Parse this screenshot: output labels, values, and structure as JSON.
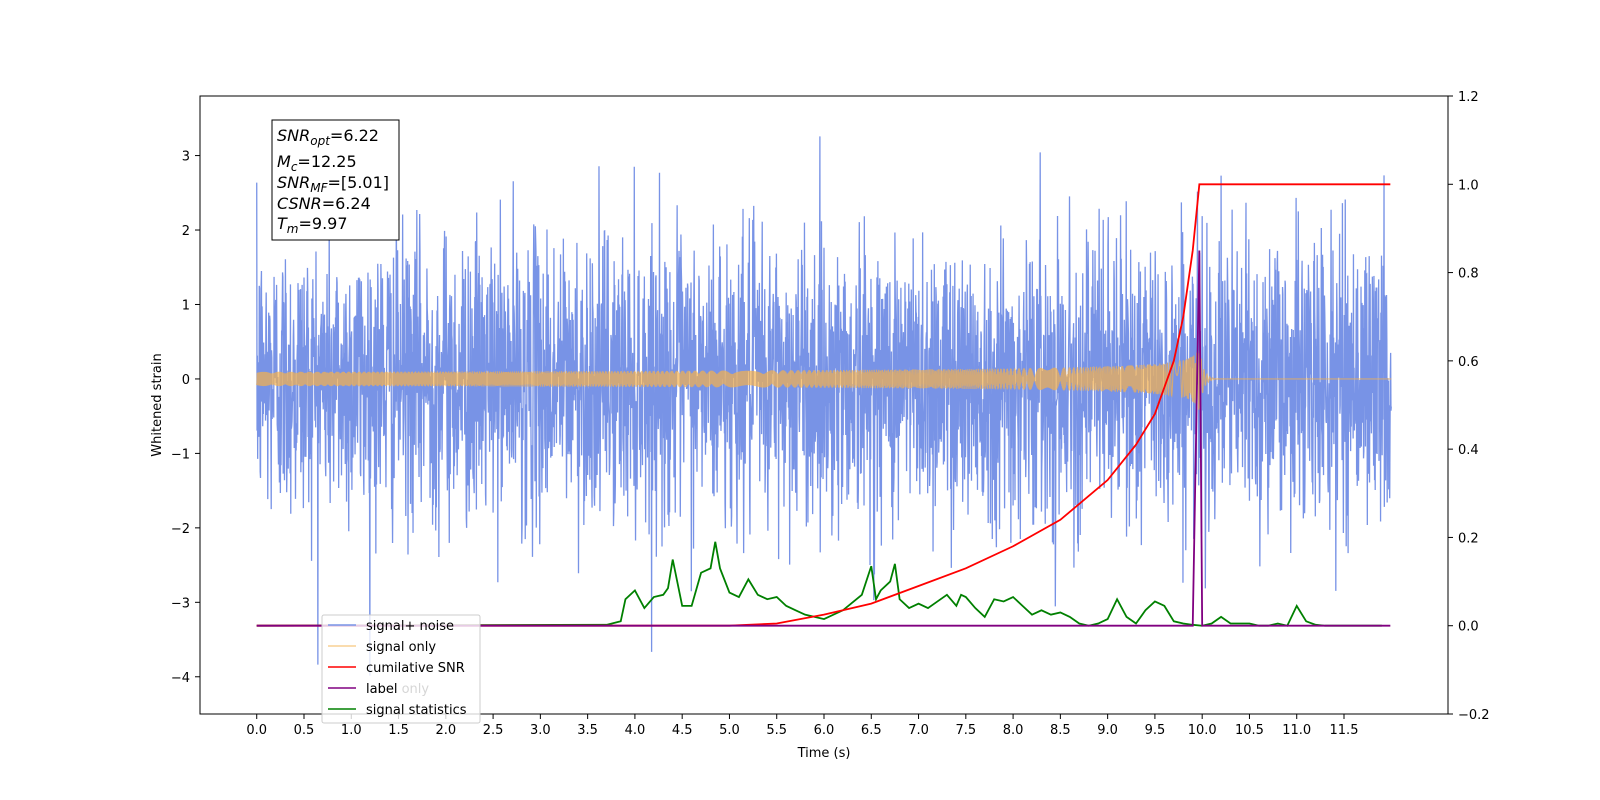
{
  "chart_data": {
    "type": "line",
    "xlabel": "Time (s)",
    "ylabel_left": "Whitened strain",
    "ylabel_right": "",
    "xlim": [
      -0.6,
      12.6
    ],
    "ylim_left": [
      -4.5,
      3.8
    ],
    "ylim_right": [
      -0.2,
      1.2
    ],
    "x_ticks": [
      0.0,
      0.5,
      1.0,
      1.5,
      2.0,
      2.5,
      3.0,
      3.5,
      4.0,
      4.5,
      5.0,
      5.5,
      6.0,
      6.5,
      7.0,
      7.5,
      8.0,
      8.5,
      9.0,
      9.5,
      10.0,
      10.5,
      11.0,
      11.5
    ],
    "x_tick_labels": [
      "0.0",
      "0.5",
      "1.0",
      "1.5",
      "2.0",
      "2.5",
      "3.0",
      "3.5",
      "4.0",
      "4.5",
      "5.0",
      "5.5",
      "6.0",
      "6.5",
      "7.0",
      "7.5",
      "8.0",
      "8.5",
      "9.0",
      "9.5",
      "10.0",
      "10.5",
      "11.0",
      "11.5"
    ],
    "y_ticks_left": [
      -4,
      -3,
      -2,
      -1,
      0,
      1,
      2,
      3
    ],
    "y_tick_labels_left": [
      "−4",
      "−3",
      "−2",
      "−1",
      "0",
      "1",
      "2",
      "3"
    ],
    "y_ticks_right": [
      -0.2,
      0.0,
      0.2,
      0.4,
      0.6,
      0.8,
      1.0,
      1.2
    ],
    "y_tick_labels_right": [
      "−0.2",
      "0.0",
      "0.2",
      "0.4",
      "0.6",
      "0.8",
      "1.0",
      "1.2"
    ],
    "grid": false,
    "legend_position": "lower-left",
    "annotation": {
      "snr_opt": {
        "base": "SNR",
        "sub": "opt",
        "value": "=6.22"
      },
      "mc": {
        "base": "M",
        "sub": "c",
        "value": "=12.25"
      },
      "snr_mf": {
        "base": "SNR",
        "sub": "MF",
        "value": "=[5.01]"
      },
      "csnr": {
        "base": "CSNR",
        "sub": "",
        "value": "=6.24"
      },
      "tm": {
        "base": "T",
        "sub": "m",
        "value": "=9.97"
      }
    },
    "series": [
      {
        "name": "signal+ noise",
        "axis": "left",
        "color": "#7893e6",
        "kind": "noise",
        "x_range": [
          0.0,
          12.0
        ],
        "amplitude_std": 0.95,
        "range": [
          -4.1,
          3.4
        ]
      },
      {
        "name": "signal only",
        "axis": "left",
        "color": "#f5b04c",
        "kind": "chirp",
        "x_range": [
          0.0,
          12.0
        ],
        "merger_time": 9.97,
        "peak_amplitude": 0.45
      },
      {
        "name": "cumilative SNR",
        "axis": "right",
        "color": "#ff0000",
        "x": [
          0.0,
          4.0,
          5.0,
          5.5,
          6.0,
          6.5,
          7.0,
          7.5,
          8.0,
          8.5,
          9.0,
          9.3,
          9.5,
          9.7,
          9.8,
          9.9,
          9.97,
          10.0,
          11.0,
          11.5,
          11.99
        ],
        "values": [
          0.0,
          0.0,
          0.0,
          0.005,
          0.025,
          0.05,
          0.09,
          0.13,
          0.18,
          0.24,
          0.33,
          0.41,
          0.48,
          0.6,
          0.7,
          0.85,
          1.0,
          1.0,
          1.0,
          1.0,
          1.0
        ]
      },
      {
        "name": "label",
        "axis": "right",
        "color": "#800080",
        "x": [
          0.0,
          9.9,
          9.97,
          10.0,
          11.99
        ],
        "values": [
          0.0,
          0.0,
          0.85,
          0.0,
          0.0
        ]
      },
      {
        "name": "label only",
        "axis": "right",
        "color": "#d62728",
        "hidden": true,
        "x": [],
        "values": []
      },
      {
        "name": "signal statistics",
        "axis": "right",
        "color": "#008000",
        "x": [
          0.0,
          3.7,
          3.85,
          3.9,
          4.0,
          4.1,
          4.2,
          4.3,
          4.35,
          4.4,
          4.5,
          4.6,
          4.7,
          4.8,
          4.85,
          4.9,
          5.0,
          5.1,
          5.2,
          5.3,
          5.4,
          5.5,
          5.6,
          5.7,
          5.8,
          5.9,
          6.0,
          6.2,
          6.4,
          6.5,
          6.55,
          6.6,
          6.7,
          6.75,
          6.8,
          6.9,
          7.0,
          7.1,
          7.2,
          7.3,
          7.4,
          7.45,
          7.5,
          7.6,
          7.7,
          7.8,
          7.9,
          8.0,
          8.1,
          8.2,
          8.3,
          8.4,
          8.5,
          8.6,
          8.7,
          8.8,
          8.9,
          9.0,
          9.1,
          9.2,
          9.3,
          9.4,
          9.5,
          9.6,
          9.7,
          9.8,
          9.9,
          10.0,
          10.1,
          10.2,
          10.3,
          10.4,
          10.5,
          10.6,
          10.7,
          10.8,
          10.9,
          11.0,
          11.1,
          11.2,
          11.3,
          11.5,
          11.7,
          11.9
        ],
        "values": [
          0.0,
          0.002,
          0.01,
          0.06,
          0.08,
          0.04,
          0.065,
          0.07,
          0.085,
          0.15,
          0.045,
          0.045,
          0.12,
          0.13,
          0.19,
          0.13,
          0.075,
          0.065,
          0.105,
          0.07,
          0.06,
          0.065,
          0.045,
          0.035,
          0.025,
          0.02,
          0.015,
          0.035,
          0.07,
          0.135,
          0.06,
          0.08,
          0.1,
          0.14,
          0.06,
          0.04,
          0.05,
          0.04,
          0.055,
          0.07,
          0.045,
          0.07,
          0.065,
          0.04,
          0.02,
          0.06,
          0.055,
          0.065,
          0.045,
          0.025,
          0.035,
          0.025,
          0.03,
          0.02,
          0.005,
          0.0,
          0.005,
          0.015,
          0.06,
          0.02,
          0.005,
          0.035,
          0.055,
          0.045,
          0.01,
          0.005,
          0.002,
          0.0,
          0.005,
          0.02,
          0.005,
          0.005,
          0.005,
          0.0,
          0.0,
          0.005,
          0.0,
          0.045,
          0.01,
          0.002,
          0.0,
          0.0,
          0.0,
          0.0
        ]
      }
    ]
  }
}
